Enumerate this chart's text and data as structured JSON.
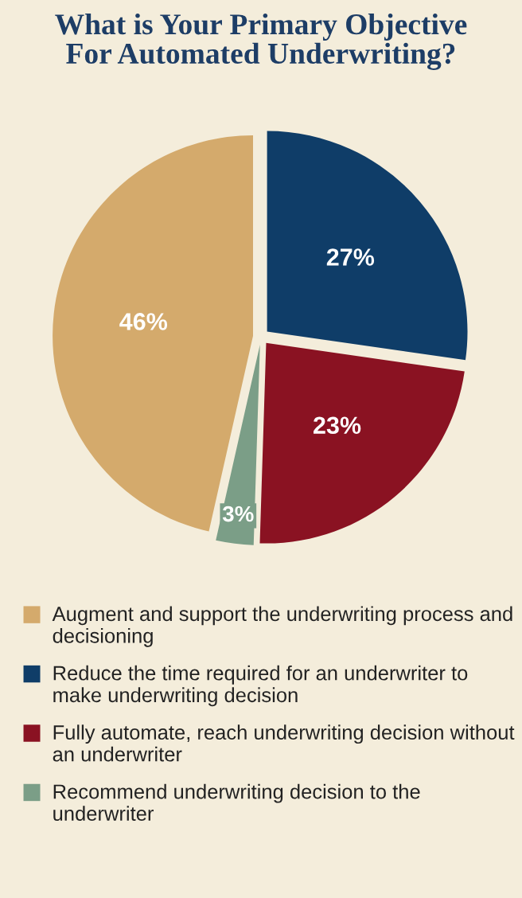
{
  "chart_data": {
    "type": "pie",
    "title": "What is Your Primary Objective\nFor Automated Underwriting?",
    "categories": [
      "Augment and support the underwriting process and decisioning",
      "Reduce the time required for an underwriter to make underwriting decision",
      "Fully automate, reach underwriting decision without an underwriter",
      "Recommend underwriting decision to the underwriter"
    ],
    "values": [
      46,
      27,
      23,
      3
    ],
    "value_labels": [
      "46%",
      "27%",
      "23%",
      "3%"
    ],
    "colors": [
      "#d4aa6c",
      "#0f3d68",
      "#8a1222",
      "#7b9e87"
    ],
    "legend": "bottom"
  }
}
